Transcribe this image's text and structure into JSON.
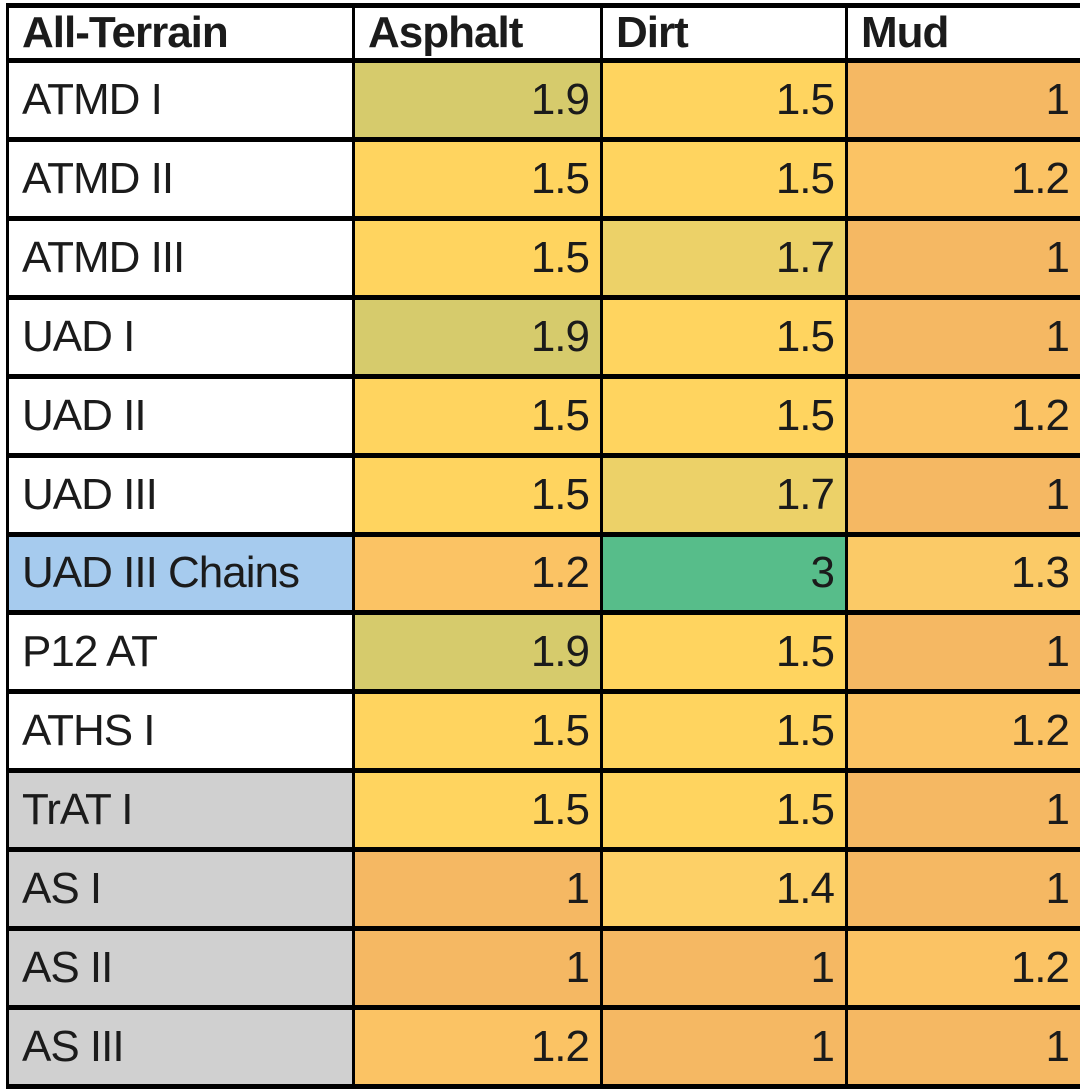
{
  "chart_data": {
    "type": "table",
    "columns": [
      "All-Terrain",
      "Asphalt",
      "Dirt",
      "Mud"
    ],
    "rows": [
      {
        "label": "ATMD I",
        "label_color": "#ffffff",
        "values": [
          1.9,
          1.5,
          1
        ],
        "cell_colors": [
          "#d6cb6c",
          "#ffd45f",
          "#f5b863"
        ]
      },
      {
        "label": "ATMD II",
        "label_color": "#ffffff",
        "values": [
          1.5,
          1.5,
          1.2
        ],
        "cell_colors": [
          "#ffd45f",
          "#ffd45f",
          "#fbc364"
        ]
      },
      {
        "label": "ATMD III",
        "label_color": "#ffffff",
        "values": [
          1.5,
          1.7,
          1
        ],
        "cell_colors": [
          "#ffd45f",
          "#ecd168",
          "#f5b863"
        ]
      },
      {
        "label": "UAD I",
        "label_color": "#ffffff",
        "values": [
          1.9,
          1.5,
          1
        ],
        "cell_colors": [
          "#d6cb6c",
          "#ffd45f",
          "#f5b863"
        ]
      },
      {
        "label": "UAD II",
        "label_color": "#ffffff",
        "values": [
          1.5,
          1.5,
          1.2
        ],
        "cell_colors": [
          "#ffd45f",
          "#ffd45f",
          "#fbc364"
        ]
      },
      {
        "label": "UAD III",
        "label_color": "#ffffff",
        "values": [
          1.5,
          1.7,
          1
        ],
        "cell_colors": [
          "#ffd45f",
          "#ecd168",
          "#f5b863"
        ]
      },
      {
        "label": "UAD III Chains",
        "label_color": "#a6cbee",
        "values": [
          1.2,
          3,
          1.3
        ],
        "cell_colors": [
          "#fbc364",
          "#57bd8a",
          "#fbca67"
        ]
      },
      {
        "label": "P12 AT",
        "label_color": "#ffffff",
        "values": [
          1.9,
          1.5,
          1
        ],
        "cell_colors": [
          "#d6cb6c",
          "#ffd45f",
          "#f5b863"
        ]
      },
      {
        "label": "ATHS I",
        "label_color": "#ffffff",
        "values": [
          1.5,
          1.5,
          1.2
        ],
        "cell_colors": [
          "#ffd45f",
          "#ffd45f",
          "#fbc364"
        ]
      },
      {
        "label": "TrAT I",
        "label_color": "#d0d0d0",
        "values": [
          1.5,
          1.5,
          1
        ],
        "cell_colors": [
          "#ffd45f",
          "#ffd45f",
          "#f5b863"
        ]
      },
      {
        "label": "AS I",
        "label_color": "#d0d0d0",
        "values": [
          1,
          1.4,
          1
        ],
        "cell_colors": [
          "#f5b863",
          "#fdd067",
          "#f5b863"
        ]
      },
      {
        "label": "AS II",
        "label_color": "#d0d0d0",
        "values": [
          1,
          1,
          1.2
        ],
        "cell_colors": [
          "#f5b863",
          "#f5b863",
          "#fbc364"
        ]
      },
      {
        "label": "AS III",
        "label_color": "#d0d0d0",
        "values": [
          1.2,
          1,
          1
        ],
        "cell_colors": [
          "#fbc364",
          "#f5b863",
          "#f5b863"
        ]
      }
    ],
    "value_color_legend": {
      "1": "#f5b863",
      "1.2": "#fbc364",
      "1.3": "#fbca67",
      "1.4": "#fdd067",
      "1.5": "#ffd45f",
      "1.7": "#ecd168",
      "1.9": "#d6cb6c",
      "3": "#57bd8a"
    },
    "colors": {
      "border": "#000000",
      "header_bg": "#ffffff",
      "text": "#1b1b1b",
      "row_highlight_blue": "#a6cbee",
      "row_muted_gray": "#d0d0d0"
    }
  }
}
